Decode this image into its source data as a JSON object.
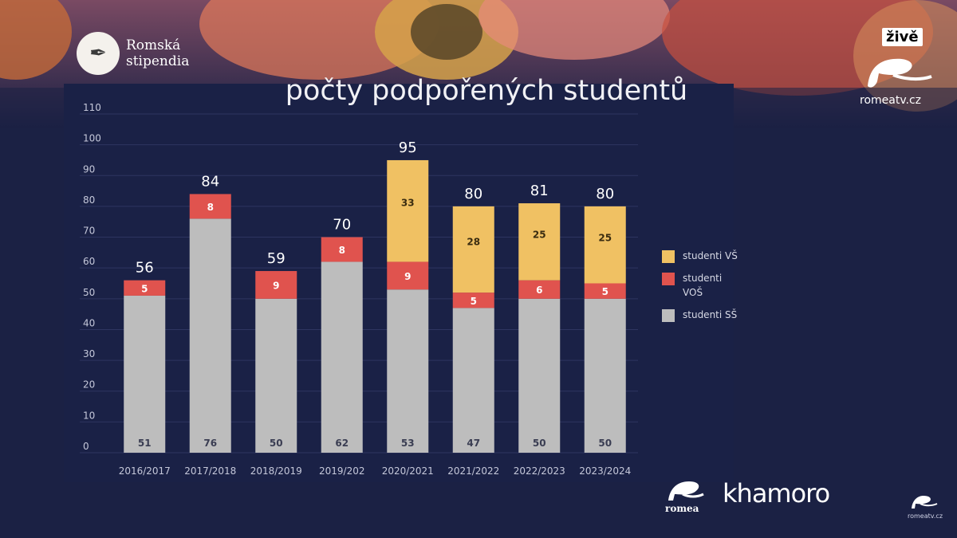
{
  "header": {
    "logo_icon": "quill-scroll-icon",
    "logo_text": "Romská\nstipendia",
    "title": "počty podpořených studentů",
    "live_badge": "živě",
    "tv_url": "romeatv.cz"
  },
  "footer": {
    "romea_text": "romea",
    "khamoro_text": "khamoro",
    "small_url": "romeatv.cz"
  },
  "colors": {
    "ss": "#bdbdbd",
    "vos": "#e0534e",
    "vs": "#f0c163",
    "background": "#1b2144",
    "grid": "#2e3560"
  },
  "chart_data": {
    "type": "bar",
    "stacked": true,
    "categories": [
      "2016/2017",
      "2017/2018",
      "2018/2019",
      "2019/202",
      "2020/2021",
      "2021/2022",
      "2022/2023",
      "2023/2024"
    ],
    "series": [
      {
        "name": "studenti SŠ",
        "key": "ss",
        "values": [
          51,
          76,
          50,
          62,
          53,
          47,
          50,
          50
        ]
      },
      {
        "name": "studenti VOŠ",
        "key": "vos",
        "values": [
          5,
          8,
          9,
          8,
          9,
          5,
          6,
          5
        ]
      },
      {
        "name": "studenti VŠ",
        "key": "vs",
        "values": [
          0,
          0,
          0,
          0,
          33,
          28,
          25,
          25
        ]
      }
    ],
    "totals": [
      56,
      84,
      59,
      70,
      95,
      80,
      81,
      80
    ],
    "ylim": [
      0,
      110
    ],
    "yticks": [
      0,
      10,
      20,
      30,
      40,
      50,
      60,
      70,
      80,
      90,
      100,
      110
    ],
    "grid": true,
    "legend": {
      "position": "right",
      "items": [
        "studenti VŠ",
        "studenti VOŠ",
        "studenti SŠ"
      ]
    }
  }
}
